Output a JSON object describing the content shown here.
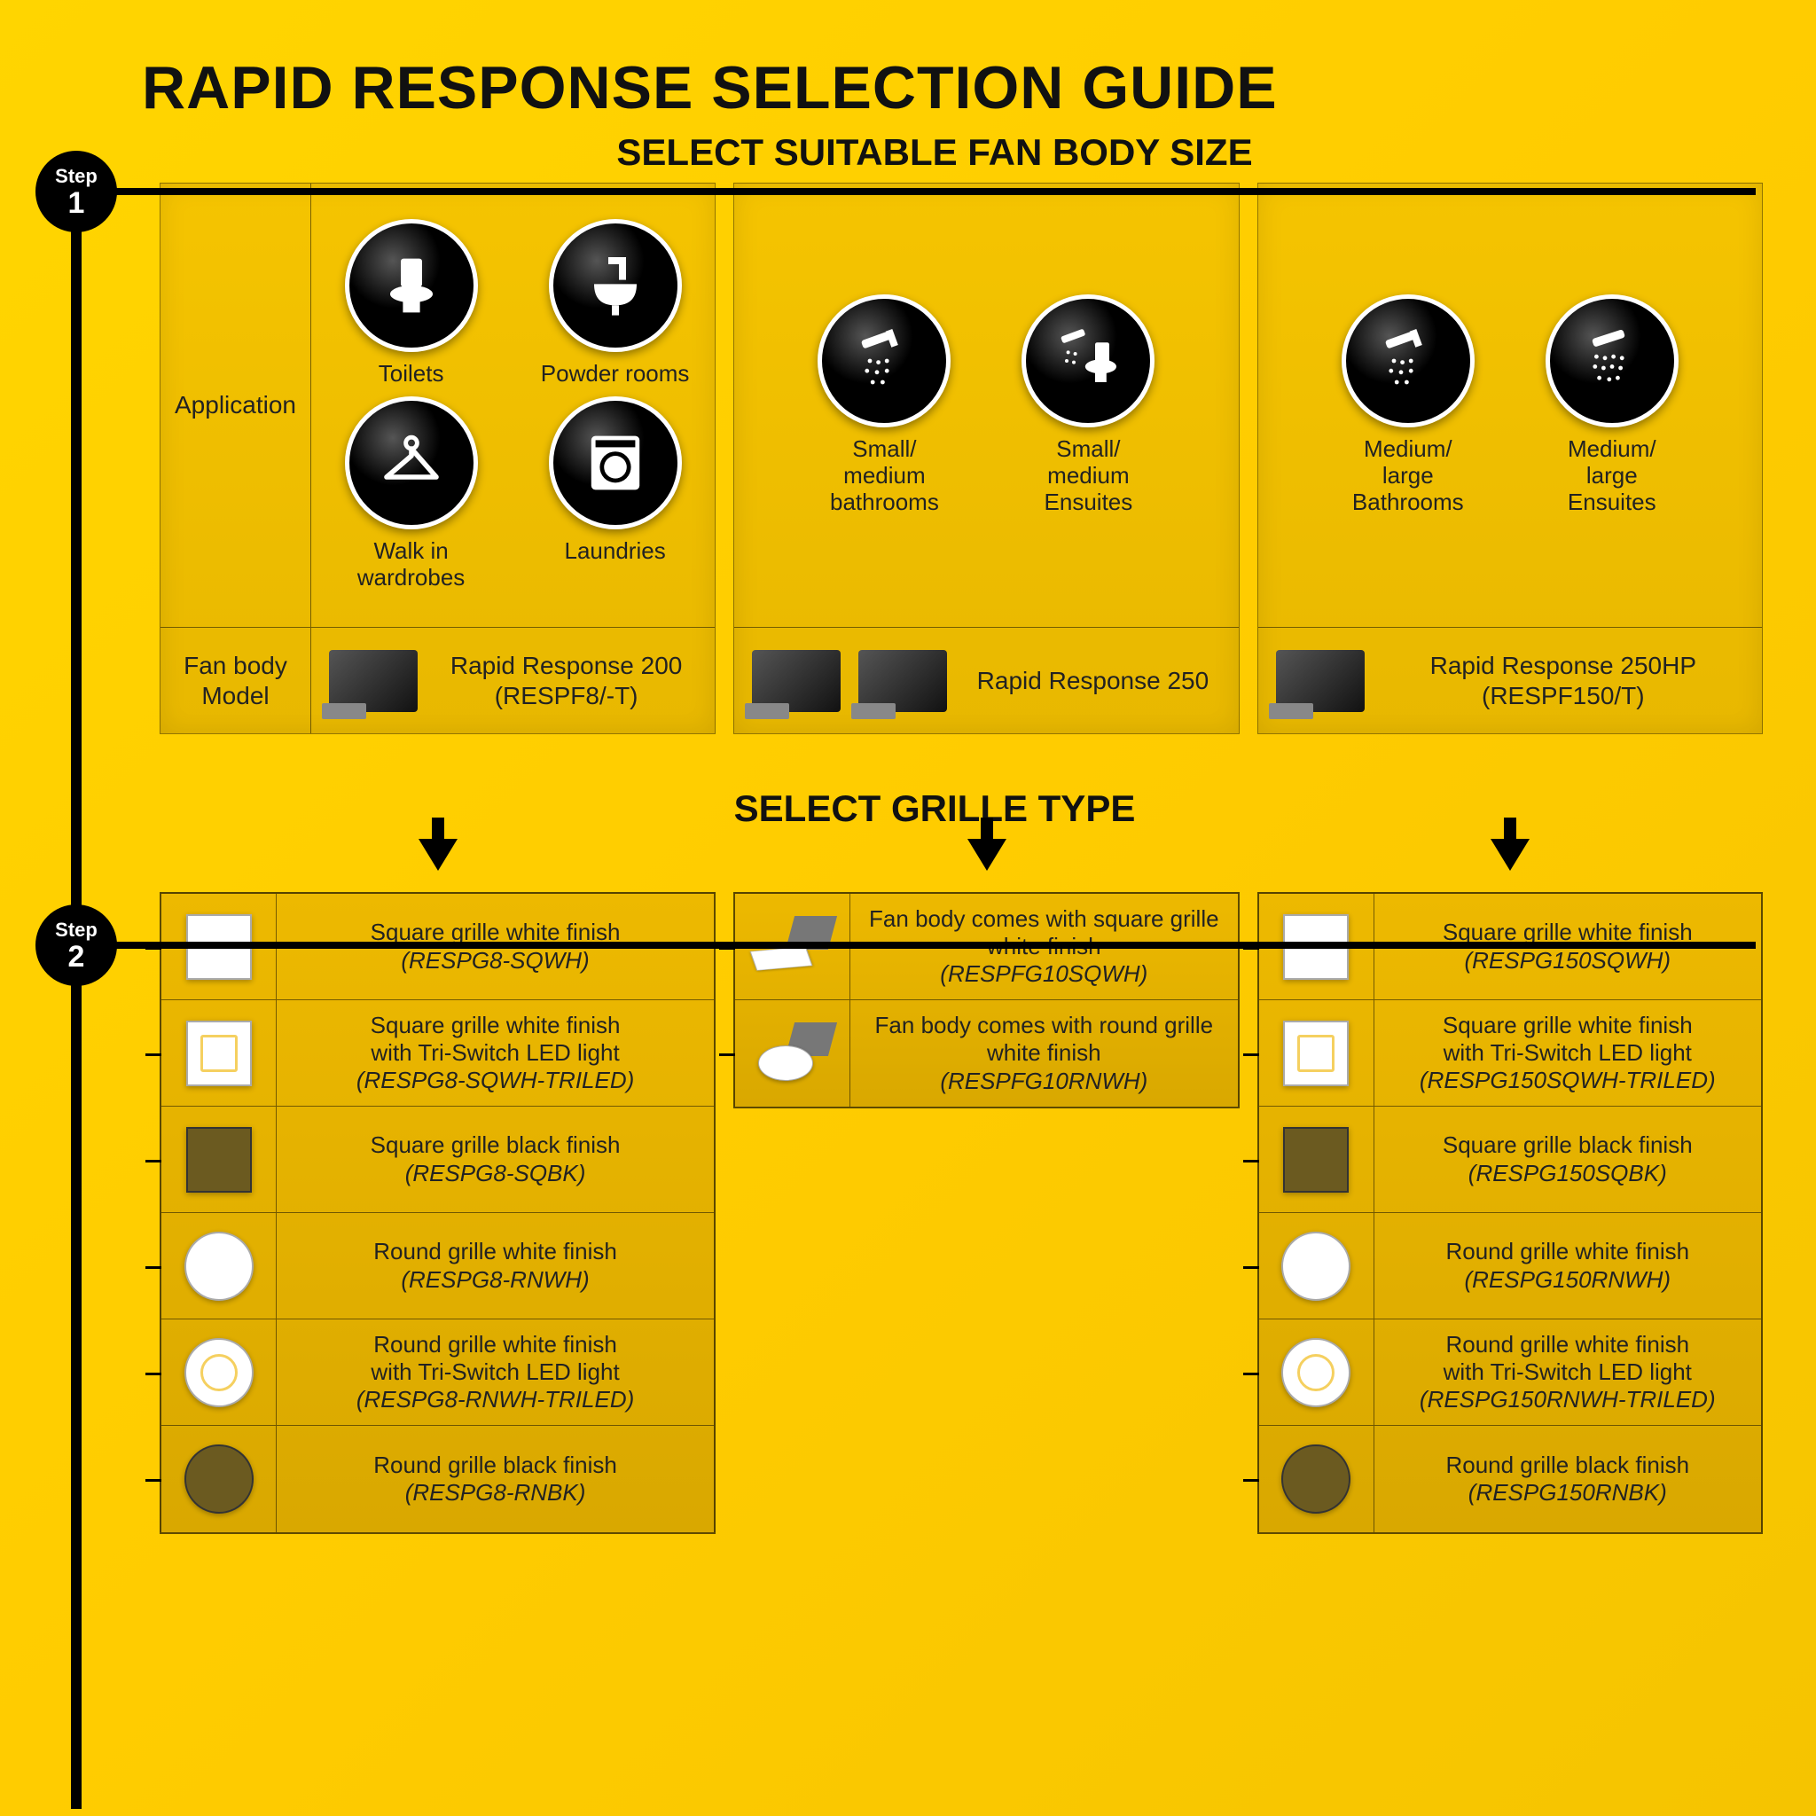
{
  "title": "RAPID RESPONSE SELECTION GUIDE",
  "steps": {
    "step1": {
      "label": "Step",
      "num": "1"
    },
    "step2": {
      "label": "Step",
      "num": "2"
    }
  },
  "section1": {
    "title": "SELECT SUITABLE FAN BODY SIZE",
    "labels": {
      "application": "Application",
      "model": "Fan body\nModel"
    },
    "columns": [
      {
        "apps": [
          {
            "name": "Toilets",
            "icon": "toilet"
          },
          {
            "name": "Powder rooms",
            "icon": "sink"
          },
          {
            "name": "Walk in wardrobes",
            "icon": "hanger"
          },
          {
            "name": "Laundries",
            "icon": "washer"
          }
        ],
        "model_name": "Rapid Response 200",
        "model_code": "(RESPF8/-T)"
      },
      {
        "apps": [
          {
            "name": "Small/\nmedium\nbathrooms",
            "icon": "shower"
          },
          {
            "name": "Small/\nmedium\nEnsuites",
            "icon": "shower-toilet"
          }
        ],
        "model_name": "Rapid Response 250",
        "model_code": ""
      },
      {
        "apps": [
          {
            "name": "Medium/\nlarge\nBathrooms",
            "icon": "shower"
          },
          {
            "name": "Medium/\nlarge\nEnsuites",
            "icon": "shower-dots"
          }
        ],
        "model_name": "Rapid Response 250HP",
        "model_code": "(RESPF150/T)"
      }
    ]
  },
  "section2": {
    "title": "SELECT GRILLE TYPE",
    "columns": [
      {
        "rows": [
          {
            "shape": "sq-white",
            "desc": "Square grille white finish",
            "code": "(RESPG8-SQWH)"
          },
          {
            "shape": "sq-white-led",
            "desc": "Square grille white finish\nwith Tri-Switch LED light",
            "code": "(RESPG8-SQWH-TRILED)"
          },
          {
            "shape": "sq-black",
            "desc": "Square grille black finish",
            "code": "(RESPG8-SQBK)"
          },
          {
            "shape": "rd-white",
            "desc": "Round grille white finish",
            "code": "(RESPG8-RNWH)"
          },
          {
            "shape": "rd-white-led",
            "desc": "Round grille white finish\nwith Tri-Switch LED light",
            "code": "(RESPG8-RNWH-TRILED)"
          },
          {
            "shape": "rd-black",
            "desc": "Round grille black finish",
            "code": "(RESPG8-RNBK)"
          }
        ]
      },
      {
        "rows": [
          {
            "shape": "combo-sq",
            "desc": "Fan body comes with square grille\nwhite finish",
            "code": "(RESPFG10SQWH)"
          },
          {
            "shape": "combo-rd",
            "desc": "Fan body comes with round grille\nwhite finish",
            "code": "(RESPFG10RNWH)"
          }
        ]
      },
      {
        "rows": [
          {
            "shape": "sq-white",
            "desc": "Square grille white finish",
            "code": "(RESPG150SQWH)"
          },
          {
            "shape": "sq-white-led",
            "desc": "Square grille white finish\nwith Tri-Switch LED light",
            "code": "(RESPG150SQWH-TRILED)"
          },
          {
            "shape": "sq-black",
            "desc": "Square grille black finish",
            "code": "(RESPG150SQBK)"
          },
          {
            "shape": "rd-white",
            "desc": "Round grille white finish",
            "code": "(RESPG150RNWH)"
          },
          {
            "shape": "rd-white-led",
            "desc": "Round grille white finish\nwith Tri-Switch LED light",
            "code": "(RESPG150RNWH-TRILED)"
          },
          {
            "shape": "rd-black",
            "desc": "Round grille black finish",
            "code": "(RESPG150RNBK)"
          }
        ]
      }
    ]
  },
  "colors": {
    "background": "#ffd500",
    "panel": "#edb900",
    "text": "#222222",
    "accent": "#000000"
  }
}
